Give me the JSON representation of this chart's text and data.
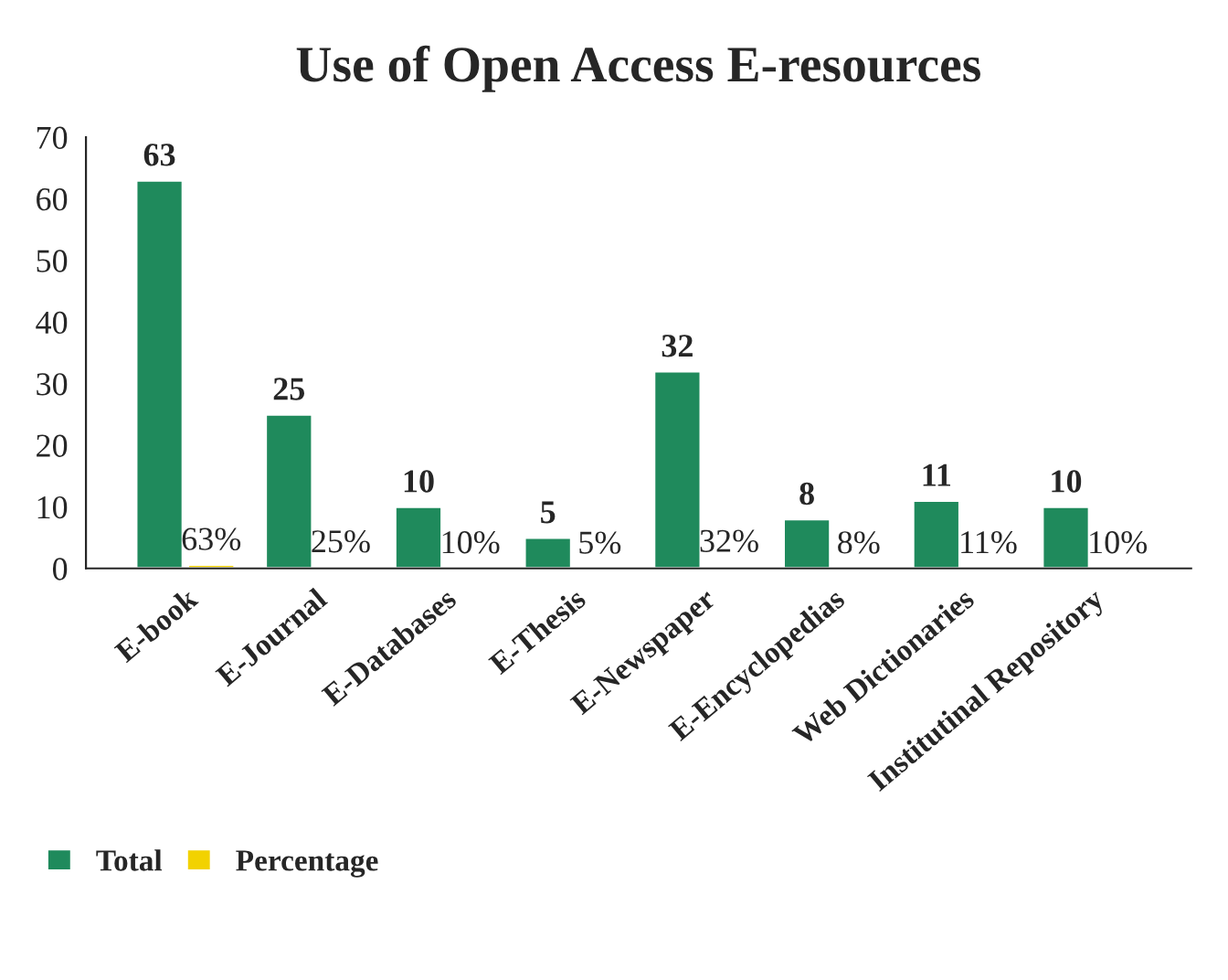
{
  "chart_data": {
    "type": "bar",
    "title": "Use of Open Access E-resources",
    "categories": [
      "E-book",
      "E-Journal",
      "E-Databases",
      "E-Thesis",
      "E-Newspaper",
      "E-Encyclopedias",
      "Web Dictionaries",
      "Institutinal Repository"
    ],
    "series": [
      {
        "name": "Total",
        "color": "#1f8a5c",
        "values": [
          63,
          25,
          10,
          5,
          32,
          8,
          11,
          10
        ],
        "value_labels": [
          "63",
          "25",
          "10",
          "5",
          "32",
          "8",
          "11",
          "10"
        ]
      },
      {
        "name": "Percentage",
        "color": "#f2d200",
        "values": [
          0.63,
          0.25,
          0.1,
          0.05,
          0.32,
          0.08,
          0.11,
          0.1
        ],
        "value_labels": [
          "63%",
          "25%",
          "10%",
          "5%",
          "32%",
          "8%",
          "11%",
          "10%"
        ]
      }
    ],
    "ylim": [
      0,
      70
    ],
    "yticks": [
      0,
      10,
      20,
      30,
      40,
      50,
      60,
      70
    ],
    "grid": false,
    "legend": "bottom left"
  }
}
